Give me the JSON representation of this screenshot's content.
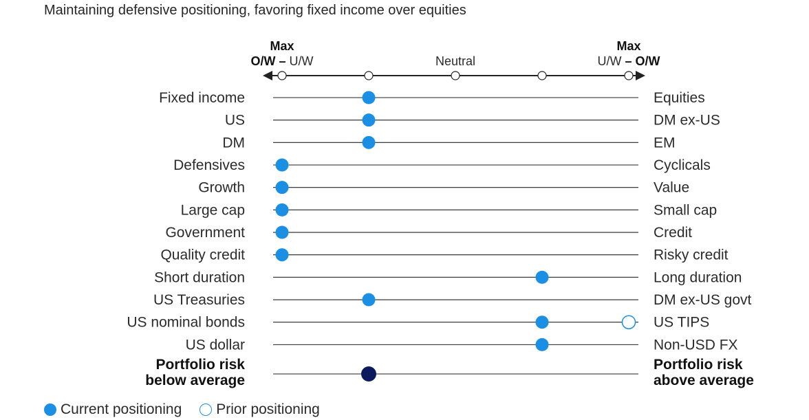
{
  "subtitle": "Maintaining defensive positioning, favoring fixed income over equities",
  "colors": {
    "current": "#1a8fe3",
    "prior": "#1a8fe3",
    "portfolio_risk": "#0b1a5e",
    "line": "#222222"
  },
  "chart_data": {
    "type": "scatter",
    "scale": {
      "positions": 5,
      "left_header": {
        "top": "Max",
        "bottom_bold": "O/W",
        "dash": " – ",
        "bottom_regular": "U/W"
      },
      "center_header": "Neutral",
      "right_header": {
        "top": "Max",
        "bottom_regular": "U/W",
        "dash": " – ",
        "bottom_bold": "O/W"
      }
    },
    "rows": [
      {
        "left": "Fixed income",
        "right": "Equities",
        "current": 2
      },
      {
        "left": "US",
        "right": "DM ex-US",
        "current": 2
      },
      {
        "left": "DM",
        "right": "EM",
        "current": 2
      },
      {
        "left": "Defensives",
        "right": "Cyclicals",
        "current": 1
      },
      {
        "left": "Growth",
        "right": "Value",
        "current": 1
      },
      {
        "left": "Large cap",
        "right": "Small cap",
        "current": 1
      },
      {
        "left": "Government",
        "right": "Credit",
        "current": 1
      },
      {
        "left": "Quality credit",
        "right": "Risky credit",
        "current": 1
      },
      {
        "left": "Short duration",
        "right": "Long duration",
        "current": 4
      },
      {
        "left": "US Treasuries",
        "right": "DM ex-US govt",
        "current": 2
      },
      {
        "left": "US nominal bonds",
        "right": "US TIPS",
        "current": 4,
        "prior": 5
      },
      {
        "left": "US dollar",
        "right": "Non-USD FX",
        "current": 4
      },
      {
        "left": "Portfolio risk\nbelow average",
        "right": "Portfolio risk\nabove average",
        "current": 2,
        "bold": true,
        "risk": true
      }
    ]
  },
  "legend": {
    "current_label": "Current positioning",
    "prior_label": "Prior positioning"
  }
}
